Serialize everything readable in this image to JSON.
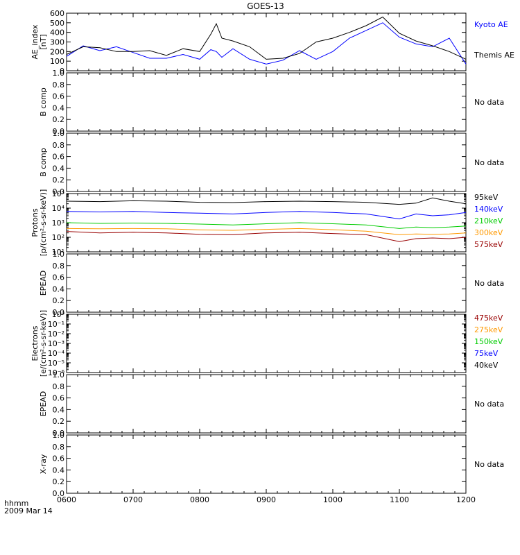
{
  "title": "GOES-13",
  "footer": {
    "time_label": "hhmm",
    "date_label": "2009 Mar 14"
  },
  "x_axis": {
    "ticks": [
      "0600",
      "0700",
      "0800",
      "0900",
      "1000",
      "1100",
      "1200"
    ]
  },
  "chart_data": [
    {
      "type": "line",
      "ylabel": [
        "AE_index",
        "[nT]"
      ],
      "ylim": [
        0,
        600
      ],
      "yticks": [
        "0",
        "100",
        "200",
        "300",
        "400",
        "500",
        "600"
      ],
      "x": [
        "0600",
        "0615",
        "0630",
        "0645",
        "0700",
        "0715",
        "0730",
        "0745",
        "0800",
        "0810",
        "0815",
        "0820",
        "0830",
        "0845",
        "0900",
        "0915",
        "0930",
        "0945",
        "1000",
        "1015",
        "1030",
        "1045",
        "1100",
        "1115",
        "1130",
        "1145",
        "1200"
      ],
      "series": [
        {
          "name": "Kyoto AE",
          "color": "#0000ff",
          "values": [
            150,
            260,
            210,
            250,
            190,
            130,
            130,
            170,
            120,
            220,
            200,
            140,
            230,
            120,
            70,
            110,
            210,
            120,
            200,
            340,
            420,
            500,
            350,
            280,
            250,
            340,
            70
          ]
        },
        {
          "name": "Themis AE",
          "color": "#000000",
          "values": [
            170,
            250,
            240,
            200,
            200,
            210,
            160,
            230,
            200,
            380,
            490,
            340,
            310,
            250,
            120,
            130,
            180,
            300,
            340,
            400,
            470,
            560,
            390,
            310,
            260,
            200,
            120
          ]
        }
      ]
    },
    {
      "type": "line",
      "ylabel": [
        "B comp"
      ],
      "ylim": [
        0,
        1
      ],
      "yticks": [
        "0.0",
        "0.2",
        "0.4",
        "0.6",
        "0.8",
        "1.0"
      ],
      "note": "No data"
    },
    {
      "type": "line",
      "ylabel": [
        "B comp"
      ],
      "ylim": [
        0,
        1
      ],
      "yticks": [
        "0.0",
        "0.2",
        "0.4",
        "0.6",
        "0.8",
        "1.0"
      ],
      "note": "No data"
    },
    {
      "type": "line",
      "log_scale": true,
      "ylabel": [
        "Protons",
        "[p/(cm²-s-sr-keV)]"
      ],
      "ylim": [
        10,
        100000
      ],
      "yticks": [
        "10¹",
        "10²",
        "10³",
        "10⁴",
        "10⁵"
      ],
      "x": [
        "0600",
        "0630",
        "0700",
        "0730",
        "0800",
        "0830",
        "0900",
        "0930",
        "1000",
        "1030",
        "1100",
        "1115",
        "1130",
        "1145",
        "1200"
      ],
      "series": [
        {
          "name": "575keV",
          "color": "#990000",
          "values": [
            250,
            200,
            220,
            200,
            160,
            150,
            200,
            220,
            180,
            150,
            50,
            80,
            90,
            80,
            100
          ]
        },
        {
          "name": "300keV",
          "color": "#ff9900",
          "values": [
            400,
            380,
            400,
            380,
            320,
            300,
            350,
            400,
            330,
            260,
            150,
            170,
            160,
            170,
            200
          ]
        },
        {
          "name": "210keV",
          "color": "#00cc00",
          "values": [
            1000,
            900,
            950,
            900,
            800,
            700,
            850,
            1000,
            850,
            700,
            400,
            500,
            450,
            500,
            600
          ]
        },
        {
          "name": "140keV",
          "color": "#0000ff",
          "values": [
            6000,
            5500,
            6000,
            5000,
            4500,
            4000,
            5000,
            6000,
            5000,
            4000,
            1800,
            4000,
            3000,
            3500,
            5000
          ]
        },
        {
          "name": "95keV",
          "color": "#000000",
          "values": [
            30000,
            28000,
            32000,
            30000,
            25000,
            24000,
            28000,
            30000,
            28000,
            25000,
            18000,
            22000,
            50000,
            30000,
            20000
          ]
        }
      ]
    },
    {
      "type": "line",
      "ylabel": [
        "EPEAD"
      ],
      "ylim": [
        0,
        1
      ],
      "yticks": [
        "0.0",
        "0.2",
        "0.4",
        "0.6",
        "0.8",
        "1.0"
      ],
      "note": "No data"
    },
    {
      "type": "line",
      "log_scale": true,
      "ylabel": [
        "Electrons",
        "[e/(cm²-s-sr-keV)]"
      ],
      "ylim": [
        1e-06,
        1
      ],
      "yticks": [
        "10⁻⁶",
        "10⁻⁵",
        "10⁻⁴",
        "10⁻³",
        "10⁻²",
        "10⁻¹",
        "10⁰"
      ],
      "legend": [
        {
          "name": "475keV",
          "color": "#990000"
        },
        {
          "name": "275keV",
          "color": "#ff9900"
        },
        {
          "name": "150keV",
          "color": "#00cc00"
        },
        {
          "name": "75keV",
          "color": "#0000ff"
        },
        {
          "name": "40keV",
          "color": "#000000"
        }
      ]
    },
    {
      "type": "line",
      "ylabel": [
        "EPEAD"
      ],
      "ylim": [
        0,
        1
      ],
      "yticks": [
        "0.0",
        "0.2",
        "0.4",
        "0.6",
        "0.8",
        "1.0"
      ],
      "note": "No data"
    },
    {
      "type": "line",
      "ylabel": [
        "X-ray"
      ],
      "ylim": [
        0,
        1
      ],
      "yticks": [
        "0.0",
        "0.2",
        "0.4",
        "0.6",
        "0.8",
        "1.0"
      ],
      "note": "No data"
    }
  ]
}
